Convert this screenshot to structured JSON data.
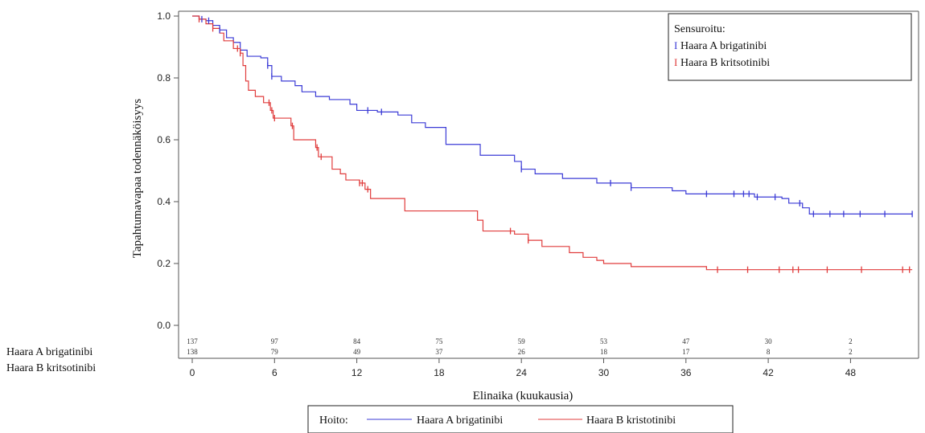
{
  "chart_data": {
    "type": "line",
    "subtype": "kaplan-meier",
    "title": "",
    "xlabel": "Elinaika (kuukausia)",
    "ylabel": "Tapahtumavapaa todennäköisyys",
    "xlim": [
      0,
      53
    ],
    "ylim": [
      0,
      1.0
    ],
    "x_ticks": [
      0,
      6,
      12,
      18,
      24,
      30,
      36,
      42,
      48
    ],
    "y_ticks": [
      "0.0",
      "0.2",
      "0.4",
      "0.6",
      "0.8",
      "1.0"
    ],
    "grid": false,
    "series": [
      {
        "name": "Haara A brigatinibi",
        "color": "#3b3bd6",
        "steps": [
          [
            0,
            1.0
          ],
          [
            0.5,
            0.99
          ],
          [
            1.0,
            0.985
          ],
          [
            1.5,
            0.97
          ],
          [
            2.0,
            0.955
          ],
          [
            2.5,
            0.93
          ],
          [
            3.0,
            0.915
          ],
          [
            3.5,
            0.89
          ],
          [
            4.0,
            0.87
          ],
          [
            5.0,
            0.865
          ],
          [
            5.5,
            0.84
          ],
          [
            5.8,
            0.805
          ],
          [
            6.5,
            0.79
          ],
          [
            7.5,
            0.775
          ],
          [
            8.0,
            0.755
          ],
          [
            9.0,
            0.74
          ],
          [
            10.0,
            0.73
          ],
          [
            11.5,
            0.715
          ],
          [
            12.0,
            0.695
          ],
          [
            13.5,
            0.69
          ],
          [
            15.0,
            0.68
          ],
          [
            16.0,
            0.655
          ],
          [
            17.0,
            0.64
          ],
          [
            18.5,
            0.585
          ],
          [
            21.0,
            0.55
          ],
          [
            23.5,
            0.53
          ],
          [
            24.0,
            0.505
          ],
          [
            25.0,
            0.49
          ],
          [
            27.0,
            0.475
          ],
          [
            29.5,
            0.46
          ],
          [
            32.0,
            0.445
          ],
          [
            35.0,
            0.435
          ],
          [
            36.0,
            0.425
          ],
          [
            41.0,
            0.415
          ],
          [
            43.0,
            0.41
          ],
          [
            43.5,
            0.395
          ],
          [
            44.5,
            0.38
          ],
          [
            45.0,
            0.36
          ],
          [
            52.5,
            0.36
          ]
        ],
        "censor_x": [
          0.7,
          1.2,
          2.0,
          5.5,
          5.8,
          12.8,
          13.8,
          24.0,
          30.5,
          32.0,
          37.5,
          39.5,
          40.2,
          40.6,
          41.2,
          42.5,
          44.3,
          45.3,
          46.5,
          47.5,
          48.7,
          50.5,
          52.5
        ]
      },
      {
        "name": "Haara B kritsotinibi",
        "color": "#e03c3c",
        "steps": [
          [
            0,
            1.0
          ],
          [
            0.5,
            0.99
          ],
          [
            1.0,
            0.975
          ],
          [
            1.5,
            0.96
          ],
          [
            2.0,
            0.945
          ],
          [
            2.3,
            0.92
          ],
          [
            3.0,
            0.895
          ],
          [
            3.5,
            0.88
          ],
          [
            3.7,
            0.84
          ],
          [
            3.9,
            0.79
          ],
          [
            4.1,
            0.76
          ],
          [
            4.6,
            0.74
          ],
          [
            5.2,
            0.72
          ],
          [
            5.7,
            0.695
          ],
          [
            5.9,
            0.67
          ],
          [
            7.2,
            0.645
          ],
          [
            7.4,
            0.6
          ],
          [
            9.0,
            0.575
          ],
          [
            9.2,
            0.545
          ],
          [
            10.2,
            0.505
          ],
          [
            10.8,
            0.49
          ],
          [
            11.2,
            0.47
          ],
          [
            12.2,
            0.46
          ],
          [
            12.6,
            0.44
          ],
          [
            13.0,
            0.41
          ],
          [
            15.5,
            0.37
          ],
          [
            20.8,
            0.34
          ],
          [
            21.2,
            0.305
          ],
          [
            23.5,
            0.295
          ],
          [
            24.5,
            0.275
          ],
          [
            25.5,
            0.255
          ],
          [
            27.5,
            0.235
          ],
          [
            28.5,
            0.22
          ],
          [
            29.5,
            0.21
          ],
          [
            30.0,
            0.2
          ],
          [
            32.0,
            0.19
          ],
          [
            37.5,
            0.18
          ],
          [
            52.5,
            0.18
          ]
        ],
        "censor_x": [
          0.5,
          1.5,
          3.3,
          3.5,
          5.6,
          5.8,
          6.0,
          7.3,
          9.1,
          9.4,
          12.2,
          12.4,
          12.8,
          23.2,
          24.5,
          38.3,
          40.5,
          42.8,
          43.8,
          44.2,
          46.3,
          48.8,
          51.8,
          52.3
        ]
      }
    ],
    "legend": {
      "location": "top-right",
      "title": "Sensuroitu:",
      "items": [
        "Haara A brigatinibi",
        "Haara B kritsotinibi"
      ],
      "censor_glyph": "I"
    },
    "risk_table": {
      "times": [
        0,
        6,
        12,
        18,
        24,
        30,
        36,
        42,
        48
      ],
      "rows": [
        {
          "name": "Haara A brigatinibi",
          "values": [
            "137",
            "97",
            "84",
            "75",
            "59",
            "53",
            "47",
            "30",
            "2"
          ]
        },
        {
          "name": "Haara B kritsotinibi",
          "values": [
            "138",
            "79",
            "49",
            "37",
            "26",
            "18",
            "17",
            "8",
            "2"
          ]
        }
      ]
    },
    "bottom_legend": {
      "title": "Hoito:",
      "items": [
        "Haara A brigatinibi",
        "Haara B kristotinibi"
      ]
    }
  }
}
